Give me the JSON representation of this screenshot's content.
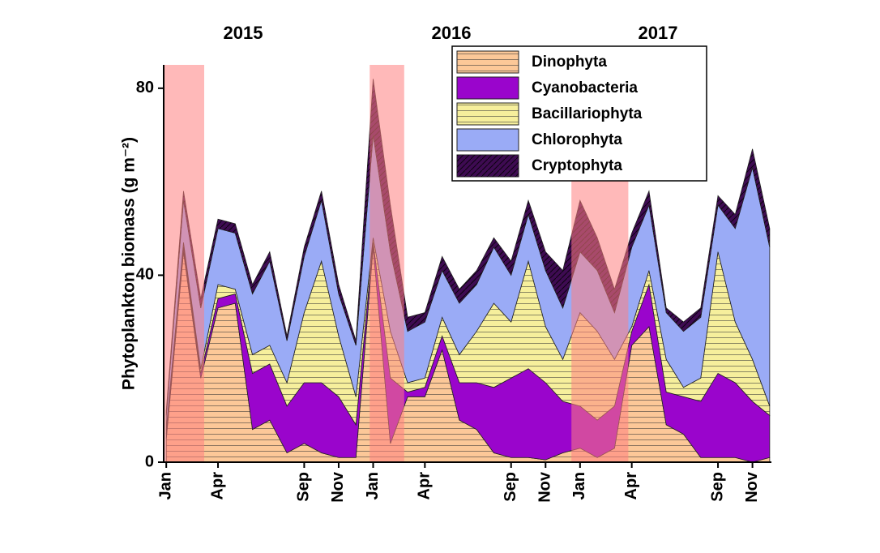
{
  "chart_data": {
    "type": "stacked_area",
    "ylabel": "Phytoplankton biomass (g m⁻²)",
    "annotations": [
      "2015",
      "2016",
      "2017"
    ],
    "x": [
      0,
      1,
      2,
      3,
      4,
      5,
      6,
      7,
      8,
      9,
      10,
      11,
      12,
      13,
      14,
      15,
      16,
      17,
      18,
      19,
      20,
      21,
      22,
      23,
      24,
      25,
      26,
      27,
      28,
      29,
      30,
      31,
      32,
      33,
      34,
      35
    ],
    "xlim": [
      -0.15,
      35.1
    ],
    "xticks": [
      {
        "value": 0,
        "label": "Jan"
      },
      {
        "value": 3,
        "label": "Apr"
      },
      {
        "value": 8,
        "label": "Sep"
      },
      {
        "value": 10,
        "label": "Nov"
      },
      {
        "value": 12,
        "label": "Jan"
      },
      {
        "value": 15,
        "label": "Apr"
      },
      {
        "value": 20,
        "label": "Sep"
      },
      {
        "value": 22,
        "label": "Nov"
      },
      {
        "value": 24,
        "label": "Jan"
      },
      {
        "value": 27,
        "label": "Apr"
      },
      {
        "value": 32,
        "label": "Sep"
      },
      {
        "value": 34,
        "label": "Nov"
      }
    ],
    "ylim": [
      0,
      85
    ],
    "yticks": [
      0,
      40,
      80
    ],
    "highlights": [
      [
        -0.15,
        2.2
      ],
      [
        11.8,
        13.8
      ],
      [
        23.5,
        26.8
      ]
    ],
    "highlight_color": "#ff7f7f",
    "legend": "top",
    "series": [
      {
        "name": "Dinophyta",
        "color": "#fcc898",
        "hatch": "horizontal",
        "values": [
          5,
          45,
          18,
          33,
          34,
          7,
          9,
          2,
          4,
          2,
          1,
          1,
          46,
          4,
          14,
          14,
          24,
          9,
          7,
          2,
          1,
          1,
          0.5,
          2,
          3,
          1,
          3,
          25,
          29,
          8,
          6,
          1,
          1,
          1,
          0,
          1
        ]
      },
      {
        "name": "Cyanobacteria",
        "color": "#9a05cc",
        "hatch": "none",
        "values": [
          1,
          1,
          1,
          2,
          2,
          12,
          12,
          10,
          13,
          15,
          13,
          7,
          1,
          14,
          1,
          2,
          3,
          8,
          10,
          14,
          17,
          19,
          16.5,
          11,
          9,
          8,
          9,
          3,
          9,
          7,
          8,
          12,
          18,
          16,
          13,
          9
        ]
      },
      {
        "name": "Bacillariophyta",
        "color": "#f6ef9c",
        "hatch": "horizontal",
        "values": [
          1,
          1,
          1,
          3,
          1,
          4,
          4,
          5,
          15,
          26,
          13,
          6,
          1,
          10,
          2,
          2,
          4,
          6,
          11,
          18,
          12,
          23,
          12,
          9,
          20,
          19,
          10,
          1,
          3,
          7,
          2,
          5,
          26,
          13,
          9,
          2
        ]
      },
      {
        "name": "Chlorophyta",
        "color": "#9aabf6",
        "hatch": "none",
        "values": [
          3,
          9,
          13,
          12,
          12,
          13,
          18,
          9,
          12,
          13,
          9,
          11,
          22,
          17,
          11,
          12,
          10,
          11,
          10,
          12,
          10,
          10,
          12,
          11,
          13,
          13,
          10,
          17,
          14,
          10,
          12,
          13,
          10,
          20,
          41,
          34
        ]
      },
      {
        "name": "Cryptophyta",
        "color": "#3e0b52",
        "hatch": "diagonal",
        "values": [
          1,
          2,
          2,
          2,
          2,
          2,
          2,
          1,
          2,
          2,
          2,
          1,
          12,
          10,
          3,
          2,
          3,
          3,
          3,
          2,
          3,
          3,
          4,
          8,
          11,
          7,
          5,
          3,
          3,
          1,
          2,
          2,
          2,
          3,
          4,
          4
        ]
      }
    ]
  }
}
